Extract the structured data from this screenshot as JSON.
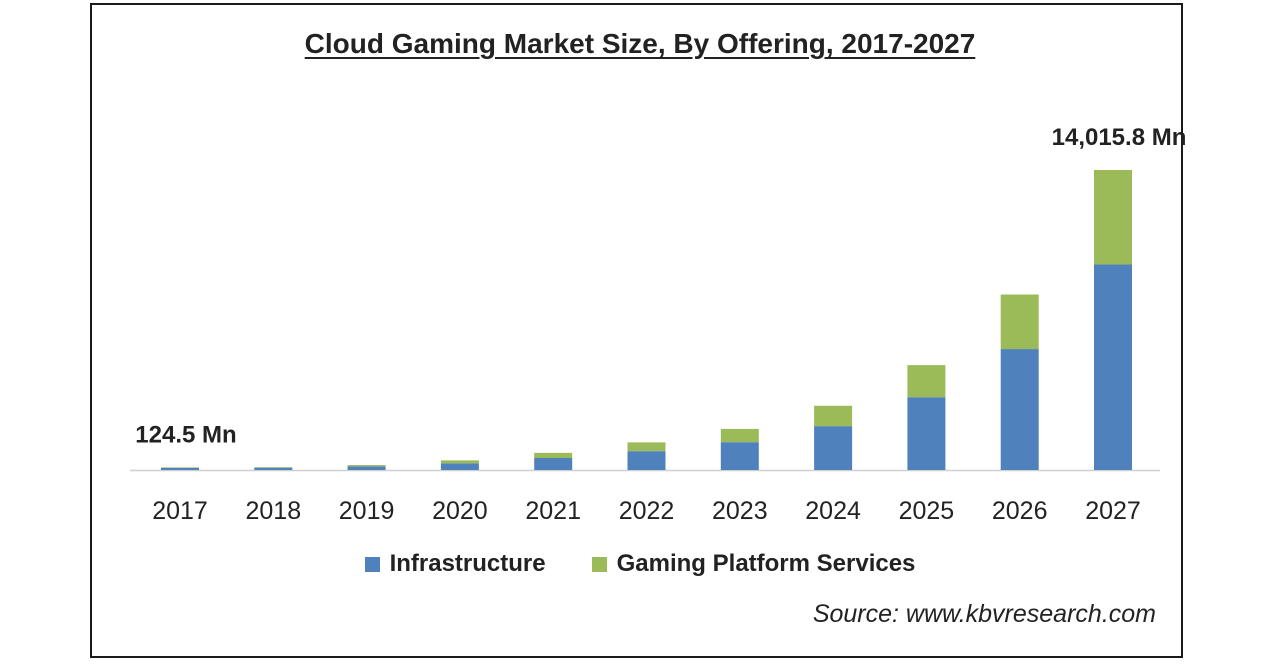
{
  "chart_data": {
    "type": "bar",
    "stacked": true,
    "title": "Cloud Gaming Market Size, By Offering, 2017-2027",
    "categories": [
      "2017",
      "2018",
      "2019",
      "2020",
      "2021",
      "2022",
      "2023",
      "2024",
      "2025",
      "2026",
      "2027"
    ],
    "series": [
      {
        "name": "Infrastructure",
        "color": "#4f81bd",
        "values": [
          104,
          105,
          170,
          310,
          560,
          880,
          1300,
          2050,
          3400,
          5650,
          9600
        ]
      },
      {
        "name": "Gaming Platform Services",
        "color": "#9bbb59",
        "values": [
          20.5,
          30,
          60,
          140,
          240,
          410,
          620,
          950,
          1500,
          2550,
          4415.8
        ]
      }
    ],
    "annotations": [
      {
        "category": "2017",
        "text": "124.5 Mn"
      },
      {
        "category": "2027",
        "text": "14,015.8 Mn"
      }
    ],
    "ylim": [
      0,
      14015.8
    ],
    "grid": false,
    "legend_position": "bottom"
  },
  "source": "Source: www.kbvresearch.com"
}
